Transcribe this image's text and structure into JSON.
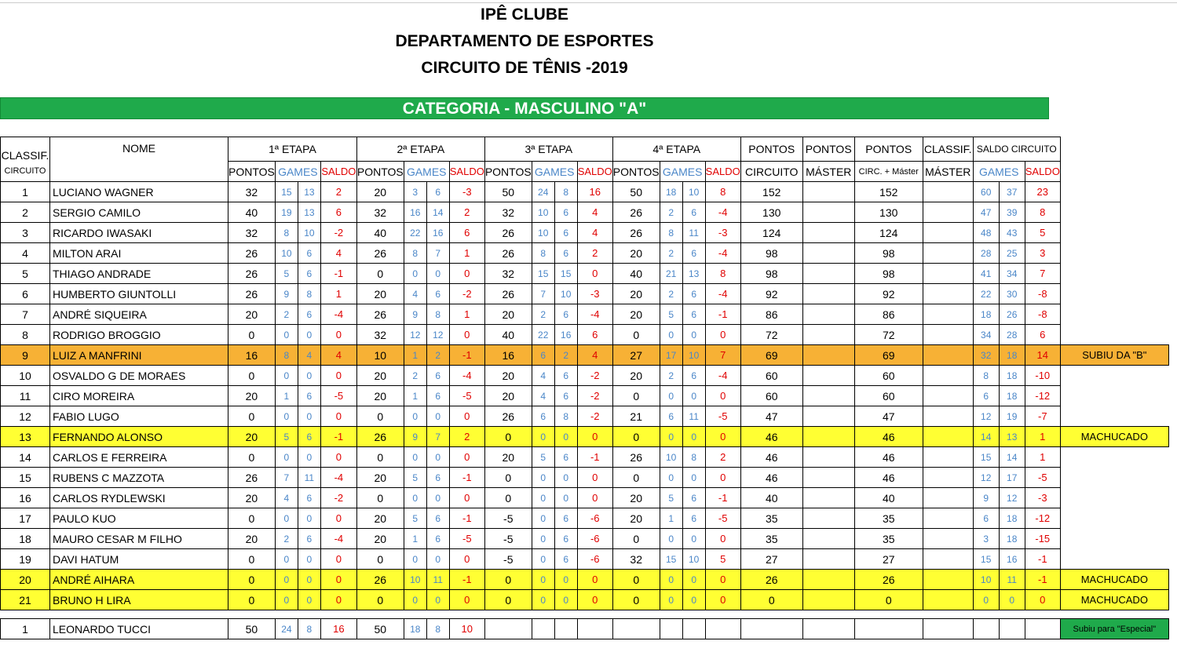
{
  "header": {
    "club": "IPÊ CLUBE",
    "department": "DEPARTAMENTO DE ESPORTES",
    "circuit": "CIRCUITO DE TÊNIS -2019",
    "category": "CATEGORIA - MASCULINO \"A\""
  },
  "columns": {
    "classif": "CLASSIF.",
    "classif_sub": "CIRCUITO",
    "nome": "NOME",
    "etapa1": "1ª ETAPA",
    "etapa2": "2ª ETAPA",
    "etapa3": "3ª ETAPA",
    "etapa4": "4ª ETAPA",
    "pontos": "PONTOS",
    "games": "GAMES",
    "saldo": "SALDO",
    "pontos_circuito_1": "PONTOS",
    "pontos_circuito_2": "CIRCUITO",
    "pontos_master_1": "PONTOS",
    "pontos_master_2": "MÁSTER",
    "pontos_total_1": "PONTOS",
    "pontos_total_2": "CIRC. + Máster",
    "classif_master_1": "CLASSIF.",
    "classif_master_2": "MÁSTER",
    "saldo_circuito": "SALDO CIRCUITO"
  },
  "rows": [
    {
      "pos": "1",
      "name": "LUCIANO WAGNER",
      "e": [
        [
          "32",
          "15",
          "13",
          "2"
        ],
        [
          "20",
          "3",
          "6",
          "-3"
        ],
        [
          "50",
          "24",
          "8",
          "16"
        ],
        [
          "50",
          "18",
          "10",
          "8"
        ]
      ],
      "pc": "152",
      "pm": "",
      "pt": "152",
      "cm": "",
      "sc": [
        "60",
        "37",
        "23"
      ],
      "note": "",
      "hl": ""
    },
    {
      "pos": "2",
      "name": "SERGIO CAMILO",
      "e": [
        [
          "40",
          "19",
          "13",
          "6"
        ],
        [
          "32",
          "16",
          "14",
          "2"
        ],
        [
          "32",
          "10",
          "6",
          "4"
        ],
        [
          "26",
          "2",
          "6",
          "-4"
        ]
      ],
      "pc": "130",
      "pm": "",
      "pt": "130",
      "cm": "",
      "sc": [
        "47",
        "39",
        "8"
      ],
      "note": "",
      "hl": ""
    },
    {
      "pos": "3",
      "name": "RICARDO IWASAKI",
      "e": [
        [
          "32",
          "8",
          "10",
          "-2"
        ],
        [
          "40",
          "22",
          "16",
          "6"
        ],
        [
          "26",
          "10",
          "6",
          "4"
        ],
        [
          "26",
          "8",
          "11",
          "-3"
        ]
      ],
      "pc": "124",
      "pm": "",
      "pt": "124",
      "cm": "",
      "sc": [
        "48",
        "43",
        "5"
      ],
      "note": "",
      "hl": ""
    },
    {
      "pos": "4",
      "name": "MILTON ARAI",
      "e": [
        [
          "26",
          "10",
          "6",
          "4"
        ],
        [
          "26",
          "8",
          "7",
          "1"
        ],
        [
          "26",
          "8",
          "6",
          "2"
        ],
        [
          "20",
          "2",
          "6",
          "-4"
        ]
      ],
      "pc": "98",
      "pm": "",
      "pt": "98",
      "cm": "",
      "sc": [
        "28",
        "25",
        "3"
      ],
      "note": "",
      "hl": ""
    },
    {
      "pos": "5",
      "name": "THIAGO ANDRADE",
      "e": [
        [
          "26",
          "5",
          "6",
          "-1"
        ],
        [
          "0",
          "0",
          "0",
          "0"
        ],
        [
          "32",
          "15",
          "15",
          "0"
        ],
        [
          "40",
          "21",
          "13",
          "8"
        ]
      ],
      "pc": "98",
      "pm": "",
      "pt": "98",
      "cm": "",
      "sc": [
        "41",
        "34",
        "7"
      ],
      "note": "",
      "hl": ""
    },
    {
      "pos": "6",
      "name": "HUMBERTO GIUNTOLLI",
      "e": [
        [
          "26",
          "9",
          "8",
          "1"
        ],
        [
          "20",
          "4",
          "6",
          "-2"
        ],
        [
          "26",
          "7",
          "10",
          "-3"
        ],
        [
          "20",
          "2",
          "6",
          "-4"
        ]
      ],
      "pc": "92",
      "pm": "",
      "pt": "92",
      "cm": "",
      "sc": [
        "22",
        "30",
        "-8"
      ],
      "note": "",
      "hl": ""
    },
    {
      "pos": "7",
      "name": "ANDRÉ SIQUEIRA",
      "e": [
        [
          "20",
          "2",
          "6",
          "-4"
        ],
        [
          "26",
          "9",
          "8",
          "1"
        ],
        [
          "20",
          "2",
          "6",
          "-4"
        ],
        [
          "20",
          "5",
          "6",
          "-1"
        ]
      ],
      "pc": "86",
      "pm": "",
      "pt": "86",
      "cm": "",
      "sc": [
        "18",
        "26",
        "-8"
      ],
      "note": "",
      "hl": ""
    },
    {
      "pos": "8",
      "name": "RODRIGO BROGGIO",
      "e": [
        [
          "0",
          "0",
          "0",
          "0"
        ],
        [
          "32",
          "12",
          "12",
          "0"
        ],
        [
          "40",
          "22",
          "16",
          "6"
        ],
        [
          "0",
          "0",
          "0",
          "0"
        ]
      ],
      "pc": "72",
      "pm": "",
      "pt": "72",
      "cm": "",
      "sc": [
        "34",
        "28",
        "6"
      ],
      "note": "",
      "hl": ""
    },
    {
      "pos": "9",
      "name": "LUIZ A MANFRINI",
      "e": [
        [
          "16",
          "8",
          "4",
          "4"
        ],
        [
          "10",
          "1",
          "2",
          "-1"
        ],
        [
          "16",
          "6",
          "2",
          "4"
        ],
        [
          "27",
          "17",
          "10",
          "7"
        ]
      ],
      "pc": "69",
      "pm": "",
      "pt": "69",
      "cm": "",
      "sc": [
        "32",
        "18",
        "14"
      ],
      "note": "SUBIU DA \"B\"",
      "hl": "orange"
    },
    {
      "pos": "10",
      "name": "OSVALDO G DE MORAES",
      "e": [
        [
          "0",
          "0",
          "0",
          "0"
        ],
        [
          "20",
          "2",
          "6",
          "-4"
        ],
        [
          "20",
          "4",
          "6",
          "-2"
        ],
        [
          "20",
          "2",
          "6",
          "-4"
        ]
      ],
      "pc": "60",
      "pm": "",
      "pt": "60",
      "cm": "",
      "sc": [
        "8",
        "18",
        "-10"
      ],
      "note": "",
      "hl": ""
    },
    {
      "pos": "11",
      "name": "CIRO MOREIRA",
      "e": [
        [
          "20",
          "1",
          "6",
          "-5"
        ],
        [
          "20",
          "1",
          "6",
          "-5"
        ],
        [
          "20",
          "4",
          "6",
          "-2"
        ],
        [
          "0",
          "0",
          "0",
          "0"
        ]
      ],
      "pc": "60",
      "pm": "",
      "pt": "60",
      "cm": "",
      "sc": [
        "6",
        "18",
        "-12"
      ],
      "note": "",
      "hl": ""
    },
    {
      "pos": "12",
      "name": "FABIO LUGO",
      "e": [
        [
          "0",
          "0",
          "0",
          "0"
        ],
        [
          "0",
          "0",
          "0",
          "0"
        ],
        [
          "26",
          "6",
          "8",
          "-2"
        ],
        [
          "21",
          "6",
          "11",
          "-5"
        ]
      ],
      "pc": "47",
      "pm": "",
      "pt": "47",
      "cm": "",
      "sc": [
        "12",
        "19",
        "-7"
      ],
      "note": "",
      "hl": ""
    },
    {
      "pos": "13",
      "name": "FERNANDO ALONSO",
      "e": [
        [
          "20",
          "5",
          "6",
          "-1"
        ],
        [
          "26",
          "9",
          "7",
          "2"
        ],
        [
          "0",
          "0",
          "0",
          "0"
        ],
        [
          "0",
          "0",
          "0",
          "0"
        ]
      ],
      "pc": "46",
      "pm": "",
      "pt": "46",
      "cm": "",
      "sc": [
        "14",
        "13",
        "1"
      ],
      "note": "MACHUCADO",
      "hl": "yellow"
    },
    {
      "pos": "14",
      "name": "CARLOS E FERREIRA",
      "e": [
        [
          "0",
          "0",
          "0",
          "0"
        ],
        [
          "0",
          "0",
          "0",
          "0"
        ],
        [
          "20",
          "5",
          "6",
          "-1"
        ],
        [
          "26",
          "10",
          "8",
          "2"
        ]
      ],
      "pc": "46",
      "pm": "",
      "pt": "46",
      "cm": "",
      "sc": [
        "15",
        "14",
        "1"
      ],
      "note": "",
      "hl": ""
    },
    {
      "pos": "15",
      "name": "RUBENS C MAZZOTA",
      "e": [
        [
          "26",
          "7",
          "11",
          "-4"
        ],
        [
          "20",
          "5",
          "6",
          "-1"
        ],
        [
          "0",
          "0",
          "0",
          "0"
        ],
        [
          "0",
          "0",
          "0",
          "0"
        ]
      ],
      "pc": "46",
      "pm": "",
      "pt": "46",
      "cm": "",
      "sc": [
        "12",
        "17",
        "-5"
      ],
      "note": "",
      "hl": ""
    },
    {
      "pos": "16",
      "name": "CARLOS RYDLEWSKI",
      "e": [
        [
          "20",
          "4",
          "6",
          "-2"
        ],
        [
          "0",
          "0",
          "0",
          "0"
        ],
        [
          "0",
          "0",
          "0",
          "0"
        ],
        [
          "20",
          "5",
          "6",
          "-1"
        ]
      ],
      "pc": "40",
      "pm": "",
      "pt": "40",
      "cm": "",
      "sc": [
        "9",
        "12",
        "-3"
      ],
      "note": "",
      "hl": ""
    },
    {
      "pos": "17",
      "name": "PAULO KUO",
      "e": [
        [
          "0",
          "0",
          "0",
          "0"
        ],
        [
          "20",
          "5",
          "6",
          "-1"
        ],
        [
          "-5",
          "0",
          "6",
          "-6"
        ],
        [
          "20",
          "1",
          "6",
          "-5"
        ]
      ],
      "pc": "35",
      "pm": "",
      "pt": "35",
      "cm": "",
      "sc": [
        "6",
        "18",
        "-12"
      ],
      "note": "",
      "hl": ""
    },
    {
      "pos": "18",
      "name": "MAURO CESAR M FILHO",
      "e": [
        [
          "20",
          "2",
          "6",
          "-4"
        ],
        [
          "20",
          "1",
          "6",
          "-5"
        ],
        [
          "-5",
          "0",
          "6",
          "-6"
        ],
        [
          "0",
          "0",
          "0",
          "0"
        ]
      ],
      "pc": "35",
      "pm": "",
      "pt": "35",
      "cm": "",
      "sc": [
        "3",
        "18",
        "-15"
      ],
      "note": "",
      "hl": ""
    },
    {
      "pos": "19",
      "name": "DAVI HATUM",
      "e": [
        [
          "0",
          "0",
          "0",
          "0"
        ],
        [
          "0",
          "0",
          "0",
          "0"
        ],
        [
          "-5",
          "0",
          "6",
          "-6"
        ],
        [
          "32",
          "15",
          "10",
          "5"
        ]
      ],
      "pc": "27",
      "pm": "",
      "pt": "27",
      "cm": "",
      "sc": [
        "15",
        "16",
        "-1"
      ],
      "note": "",
      "hl": ""
    },
    {
      "pos": "20",
      "name": "ANDRÉ AIHARA",
      "e": [
        [
          "0",
          "0",
          "0",
          "0"
        ],
        [
          "26",
          "10",
          "11",
          "-1"
        ],
        [
          "0",
          "0",
          "0",
          "0"
        ],
        [
          "0",
          "0",
          "0",
          "0"
        ]
      ],
      "pc": "26",
      "pm": "",
      "pt": "26",
      "cm": "",
      "sc": [
        "10",
        "11",
        "-1"
      ],
      "note": "MACHUCADO",
      "hl": "yellow"
    },
    {
      "pos": "21",
      "name": "BRUNO H LIRA",
      "e": [
        [
          "0",
          "0",
          "0",
          "0"
        ],
        [
          "0",
          "0",
          "0",
          "0"
        ],
        [
          "0",
          "0",
          "0",
          "0"
        ],
        [
          "0",
          "0",
          "0",
          "0"
        ]
      ],
      "pc": "0",
      "pm": "",
      "pt": "0",
      "cm": "",
      "sc": [
        "0",
        "0",
        "0"
      ],
      "note": "MACHUCADO",
      "hl": "yellow"
    }
  ],
  "extra_row": {
    "pos": "1",
    "name": "LEONARDO TUCCI",
    "e": [
      [
        "50",
        "24",
        "8",
        "16"
      ],
      [
        "50",
        "18",
        "8",
        "10"
      ],
      [
        "",
        "",
        "",
        ""
      ],
      [
        "",
        "",
        "",
        ""
      ]
    ],
    "pc": "",
    "pm": "",
    "pt": "",
    "cm": "",
    "sc": [
      "",
      "",
      ""
    ],
    "note": "Subiu para \"Especial\"",
    "hl": "green"
  },
  "colors": {
    "green": "#1faa4b",
    "orange": "#f7b135",
    "yellow": "#ffff33",
    "blue": "#4a86c8",
    "red": "#e00000"
  }
}
